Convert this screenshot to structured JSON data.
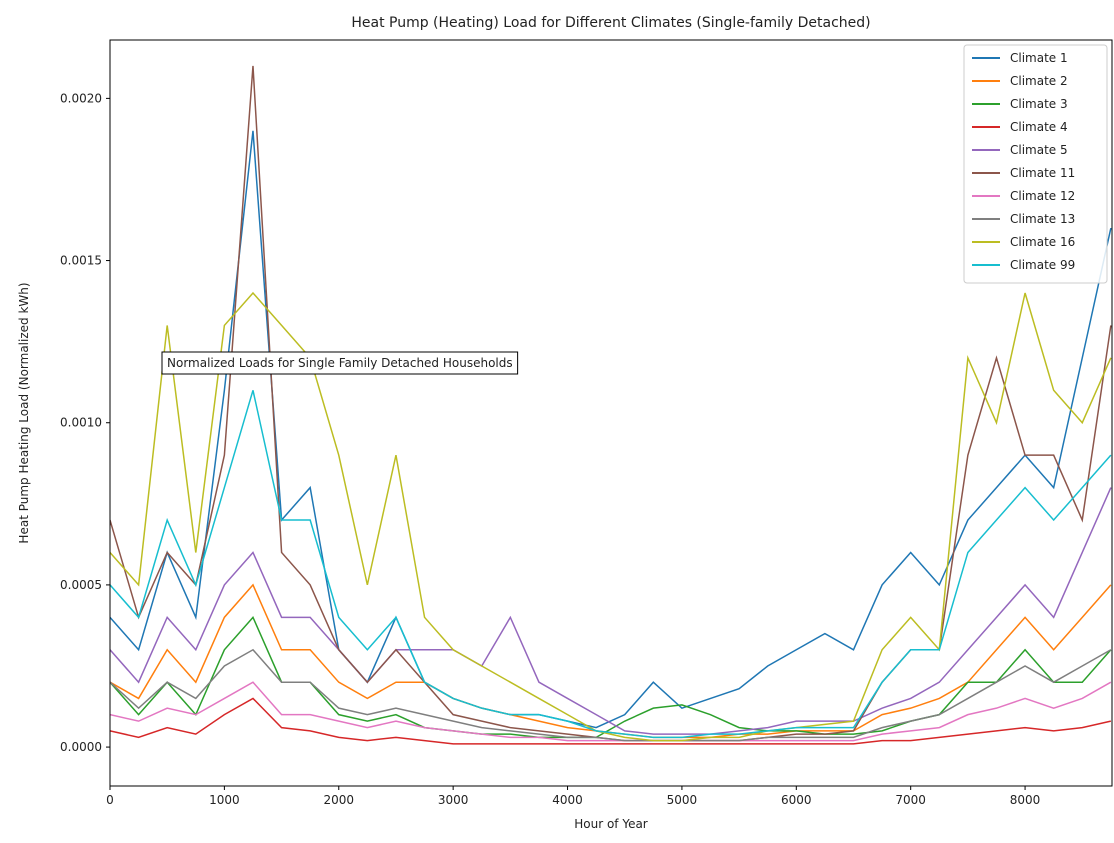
{
  "chart_data": {
    "type": "line",
    "title": "Heat Pump (Heating) Load for Different Climates (Single-family Detached)",
    "xlabel": "Hour of Year",
    "ylabel": "Heat Pump Heating Load (Normalized kWh)",
    "annotation": "Normalized Loads for Single Family Detached Households",
    "legend": "upper right",
    "xlim": [
      0,
      8760
    ],
    "ylim": [
      -0.00012,
      0.00218
    ],
    "xticks": [
      0,
      1000,
      2000,
      3000,
      4000,
      5000,
      6000,
      7000,
      8000
    ],
    "yticks": [
      {
        "value": 0,
        "label": "0.0000"
      },
      {
        "value": 0.0005,
        "label": "0.0005"
      },
      {
        "value": 0.001,
        "label": "0.0010"
      },
      {
        "value": 0.0015,
        "label": "0.0015"
      },
      {
        "value": 0.002,
        "label": "0.0020"
      }
    ],
    "x": [
      0,
      250,
      500,
      750,
      1000,
      1250,
      1500,
      1750,
      2000,
      2250,
      2500,
      2750,
      3000,
      3250,
      3500,
      3750,
      4000,
      4250,
      4500,
      4750,
      5000,
      5250,
      5500,
      5750,
      6000,
      6250,
      6500,
      6750,
      7000,
      7250,
      7500,
      7750,
      8000,
      8250,
      8500,
      8750
    ],
    "series": [
      {
        "name": "Climate 1",
        "color": "#1f77b4",
        "values": [
          0.0004,
          0.0003,
          0.0006,
          0.0004,
          0.0011,
          0.0019,
          0.0007,
          0.0008,
          0.0003,
          0.0002,
          0.0004,
          0.0002,
          0.00015,
          0.00012,
          0.0001,
          0.0001,
          8e-05,
          6e-05,
          0.0001,
          0.0002,
          0.00012,
          0.00015,
          0.00018,
          0.00025,
          0.0003,
          0.00035,
          0.0003,
          0.0005,
          0.0006,
          0.0005,
          0.0007,
          0.0008,
          0.0009,
          0.0008,
          0.0012,
          0.0016
        ]
      },
      {
        "name": "Climate 2",
        "color": "#ff7f0e",
        "values": [
          0.0002,
          0.00015,
          0.0003,
          0.0002,
          0.0004,
          0.0005,
          0.0003,
          0.0003,
          0.0002,
          0.00015,
          0.0002,
          0.0002,
          0.00015,
          0.00012,
          0.0001,
          8e-05,
          6e-05,
          5e-05,
          4e-05,
          3e-05,
          3e-05,
          3e-05,
          4e-05,
          4e-05,
          5e-05,
          5e-05,
          5e-05,
          0.0001,
          0.00012,
          0.00015,
          0.0002,
          0.0003,
          0.0004,
          0.0003,
          0.0004,
          0.0005
        ]
      },
      {
        "name": "Climate 3",
        "color": "#2ca02c",
        "values": [
          0.0002,
          0.0001,
          0.0002,
          0.0001,
          0.0003,
          0.0004,
          0.0002,
          0.0002,
          0.0001,
          8e-05,
          0.0001,
          6e-05,
          5e-05,
          4e-05,
          4e-05,
          3e-05,
          3e-05,
          3e-05,
          8e-05,
          0.00012,
          0.00013,
          0.0001,
          6e-05,
          5e-05,
          5e-05,
          4e-05,
          4e-05,
          5e-05,
          8e-05,
          0.0001,
          0.0002,
          0.0002,
          0.0003,
          0.0002,
          0.0002,
          0.0003
        ]
      },
      {
        "name": "Climate 4",
        "color": "#d62728",
        "values": [
          5e-05,
          3e-05,
          6e-05,
          4e-05,
          0.0001,
          0.00015,
          6e-05,
          5e-05,
          3e-05,
          2e-05,
          3e-05,
          2e-05,
          1e-05,
          1e-05,
          1e-05,
          1e-05,
          1e-05,
          1e-05,
          1e-05,
          1e-05,
          1e-05,
          1e-05,
          1e-05,
          1e-05,
          1e-05,
          1e-05,
          1e-05,
          2e-05,
          2e-05,
          3e-05,
          4e-05,
          5e-05,
          6e-05,
          5e-05,
          6e-05,
          8e-05
        ]
      },
      {
        "name": "Climate 5",
        "color": "#9467bd",
        "values": [
          0.0003,
          0.0002,
          0.0004,
          0.0003,
          0.0005,
          0.0006,
          0.0004,
          0.0004,
          0.0003,
          0.0002,
          0.0003,
          0.0003,
          0.0003,
          0.00025,
          0.0004,
          0.0002,
          0.00015,
          0.0001,
          5e-05,
          4e-05,
          4e-05,
          4e-05,
          5e-05,
          6e-05,
          8e-05,
          8e-05,
          8e-05,
          0.00012,
          0.00015,
          0.0002,
          0.0003,
          0.0004,
          0.0005,
          0.0004,
          0.0006,
          0.0008
        ]
      },
      {
        "name": "Climate 11",
        "color": "#8c564b",
        "values": [
          0.0007,
          0.0004,
          0.0006,
          0.0005,
          0.0009,
          0.0021,
          0.0006,
          0.0005,
          0.0003,
          0.0002,
          0.0003,
          0.0002,
          0.0001,
          8e-05,
          6e-05,
          5e-05,
          4e-05,
          3e-05,
          2e-05,
          2e-05,
          2e-05,
          2e-05,
          2e-05,
          3e-05,
          4e-05,
          4e-05,
          5e-05,
          0.0002,
          0.0003,
          0.0003,
          0.0009,
          0.0012,
          0.0009,
          0.0009,
          0.0007,
          0.0013
        ]
      },
      {
        "name": "Climate 12",
        "color": "#e377c2",
        "values": [
          0.0001,
          8e-05,
          0.00012,
          0.0001,
          0.00015,
          0.0002,
          0.0001,
          0.0001,
          8e-05,
          6e-05,
          8e-05,
          6e-05,
          5e-05,
          4e-05,
          3e-05,
          3e-05,
          2e-05,
          2e-05,
          2e-05,
          2e-05,
          2e-05,
          2e-05,
          2e-05,
          2e-05,
          2e-05,
          2e-05,
          2e-05,
          4e-05,
          5e-05,
          6e-05,
          0.0001,
          0.00012,
          0.00015,
          0.00012,
          0.00015,
          0.0002
        ]
      },
      {
        "name": "Climate 13",
        "color": "#7f7f7f",
        "values": [
          0.0002,
          0.00012,
          0.0002,
          0.00015,
          0.00025,
          0.0003,
          0.0002,
          0.0002,
          0.00012,
          0.0001,
          0.00012,
          0.0001,
          8e-05,
          6e-05,
          5e-05,
          4e-05,
          3e-05,
          3e-05,
          2e-05,
          2e-05,
          2e-05,
          2e-05,
          2e-05,
          3e-05,
          3e-05,
          3e-05,
          3e-05,
          6e-05,
          8e-05,
          0.0001,
          0.00015,
          0.0002,
          0.00025,
          0.0002,
          0.00025,
          0.0003
        ]
      },
      {
        "name": "Climate 16",
        "color": "#bcbd22",
        "values": [
          0.0006,
          0.0005,
          0.0013,
          0.0006,
          0.0013,
          0.0014,
          0.0013,
          0.0012,
          0.0009,
          0.0005,
          0.0009,
          0.0004,
          0.0003,
          0.00025,
          0.0002,
          0.00015,
          0.0001,
          5e-05,
          3e-05,
          2e-05,
          2e-05,
          3e-05,
          3e-05,
          5e-05,
          6e-05,
          7e-05,
          8e-05,
          0.0003,
          0.0004,
          0.0003,
          0.0012,
          0.001,
          0.0014,
          0.0011,
          0.001,
          0.0012
        ]
      },
      {
        "name": "Climate 99",
        "color": "#17becf",
        "values": [
          0.0005,
          0.0004,
          0.0007,
          0.0005,
          0.0008,
          0.0011,
          0.0007,
          0.0007,
          0.0004,
          0.0003,
          0.0004,
          0.0002,
          0.00015,
          0.00012,
          0.0001,
          0.0001,
          8e-05,
          5e-05,
          4e-05,
          3e-05,
          3e-05,
          4e-05,
          4e-05,
          5e-05,
          6e-05,
          6e-05,
          6e-05,
          0.0002,
          0.0003,
          0.0003,
          0.0006,
          0.0007,
          0.0008,
          0.0007,
          0.0008,
          0.0009
        ]
      }
    ]
  }
}
